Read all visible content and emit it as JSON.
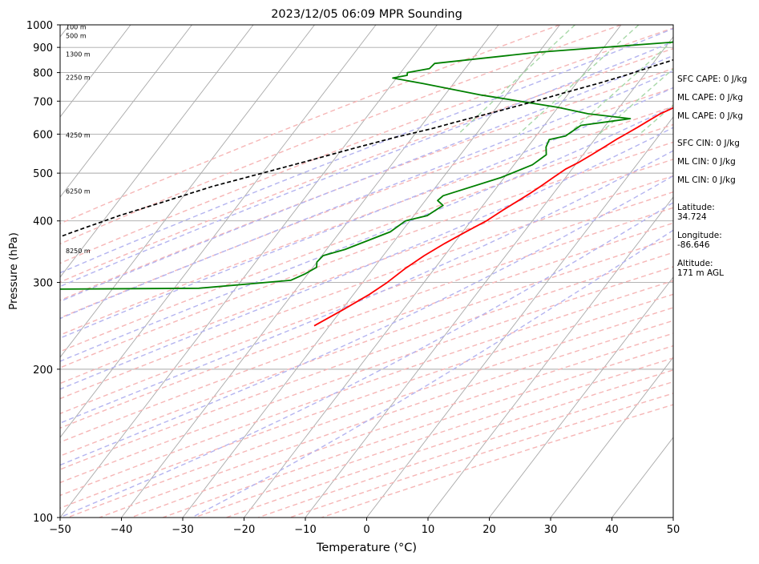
{
  "chart_data": {
    "type": "line",
    "subtype": "skew-T log-p sounding",
    "title": "2023/12/05 06:09 MPR Sounding",
    "xlabel": "Temperature (°C)",
    "ylabel": "Pressure (hPa)",
    "xlim": [
      -50,
      50
    ],
    "ylim": [
      1000,
      100
    ],
    "y_scale": "log",
    "x_ticks": [
      -50,
      -40,
      -30,
      -20,
      -10,
      0,
      10,
      20,
      30,
      40,
      50
    ],
    "y_ticks": [
      1000,
      900,
      800,
      700,
      600,
      500,
      400,
      300,
      200,
      100
    ],
    "grid": true,
    "series": [
      {
        "role": "temperature",
        "color": "#ff0000",
        "points": [
          [
            4.7,
            1000
          ],
          [
            7.0,
            985
          ],
          [
            6.5,
            960
          ],
          [
            5.8,
            940
          ],
          [
            6.3,
            915
          ],
          [
            6.6,
            890
          ],
          [
            6.9,
            865
          ],
          [
            7.0,
            845
          ],
          [
            7.5,
            820
          ],
          [
            6.5,
            800
          ],
          [
            5.9,
            785
          ],
          [
            5.2,
            765
          ],
          [
            3.8,
            740
          ],
          [
            2.5,
            720
          ],
          [
            0.5,
            700
          ],
          [
            -1.0,
            680
          ],
          [
            -2.5,
            660
          ],
          [
            -3.5,
            640
          ],
          [
            -4.5,
            620
          ],
          [
            -5.6,
            600
          ],
          [
            -6.5,
            585
          ],
          [
            -7.5,
            565
          ],
          [
            -8.6,
            545
          ],
          [
            -9.8,
            525
          ],
          [
            -11.0,
            510
          ],
          [
            -12.0,
            490
          ],
          [
            -13.0,
            470
          ],
          [
            -13.8,
            455
          ],
          [
            -14.8,
            440
          ],
          [
            -16.2,
            420
          ],
          [
            -17.5,
            400
          ],
          [
            -19.5,
            380
          ],
          [
            -21.5,
            360
          ],
          [
            -23.3,
            340
          ],
          [
            -24.8,
            320
          ],
          [
            -26.0,
            300
          ],
          [
            -27.5,
            283
          ],
          [
            -29.8,
            264
          ],
          [
            -32.5,
            245
          ]
        ]
      },
      {
        "role": "dewpoint",
        "color": "#008000",
        "points": [
          [
            1.3,
            1000
          ],
          [
            1.7,
            985
          ],
          [
            0.6,
            960
          ],
          [
            -5.6,
            930
          ],
          [
            -30.0,
            880
          ],
          [
            -45.6,
            835
          ],
          [
            -45.8,
            815
          ],
          [
            -48.9,
            800
          ],
          [
            -48.6,
            790
          ],
          [
            -50.6,
            780
          ],
          [
            -45.0,
            760
          ],
          [
            -34.0,
            720
          ],
          [
            -20.0,
            680
          ],
          [
            -14.3,
            660
          ],
          [
            -6.8,
            645
          ],
          [
            -14.0,
            625
          ],
          [
            -15.2,
            595
          ],
          [
            -17.4,
            585
          ],
          [
            -17.0,
            565
          ],
          [
            -16.0,
            545
          ],
          [
            -17.0,
            520
          ],
          [
            -20.5,
            490
          ],
          [
            -27.7,
            450
          ],
          [
            -28.0,
            440
          ],
          [
            -26.5,
            430
          ],
          [
            -27.8,
            410
          ],
          [
            -30.7,
            400
          ],
          [
            -31.8,
            380
          ],
          [
            -37.0,
            350
          ],
          [
            -39.8,
            340
          ],
          [
            -40.0,
            330
          ],
          [
            -39.4,
            322
          ],
          [
            -40.5,
            312
          ],
          [
            -42.0,
            303
          ],
          [
            -56.0,
            292
          ],
          [
            -93.5,
            290
          ]
        ]
      },
      {
        "role": "parcel",
        "color": "#000000",
        "style": "dashed",
        "points": [
          [
            4.7,
            1000
          ],
          [
            3.5,
            980
          ],
          [
            1.5,
            950
          ],
          [
            -0.5,
            925
          ],
          [
            -2.5,
            900
          ],
          [
            -4.5,
            875
          ],
          [
            -7.0,
            850
          ],
          [
            -10.0,
            820
          ],
          [
            -13.0,
            790
          ],
          [
            -16.5,
            760
          ],
          [
            -20.5,
            730
          ],
          [
            -24.5,
            700
          ],
          [
            -29.0,
            670
          ],
          [
            -34.0,
            640
          ],
          [
            -38.0,
            615
          ],
          [
            -43.0,
            590
          ],
          [
            -48.5,
            560
          ],
          [
            -54.0,
            530
          ],
          [
            -60.0,
            500
          ],
          [
            -66.5,
            470
          ],
          [
            -72.0,
            440
          ],
          [
            -78.0,
            410
          ],
          [
            -83.5,
            380
          ],
          [
            -89.0,
            350
          ],
          [
            -94.5,
            320
          ],
          [
            -100.0,
            290
          ],
          [
            -105.5,
            262
          ]
        ]
      }
    ],
    "height_labels": [
      {
        "text": "100 m",
        "p": 990
      },
      {
        "text": "500 m",
        "p": 950
      },
      {
        "text": "1300 m",
        "p": 872
      },
      {
        "text": "2250 m",
        "p": 782
      },
      {
        "text": "4250 m",
        "p": 598
      },
      {
        "text": "6250 m",
        "p": 460
      },
      {
        "text": "8250 m",
        "p": 348
      }
    ],
    "reference_lines": {
      "isotherm_color": "#a9a9a9",
      "dry_adiabat_color": "#f6b6b6",
      "moist_adiabat_color": "#b4b4f0",
      "mixing_ratio_color": "#a8d8a8"
    }
  },
  "stats": [
    {
      "lines": [
        "SFC CAPE: 0 J/kg"
      ]
    },
    {
      "lines": [
        "ML CAPE: 0 J/kg"
      ]
    },
    {
      "lines": [
        "ML CAPE: 0 J/kg"
      ]
    },
    {
      "lines": [
        "SFC CIN: 0 J/kg"
      ]
    },
    {
      "lines": [
        "ML CIN: 0 J/kg"
      ]
    },
    {
      "lines": [
        "ML CIN: 0 J/kg"
      ]
    },
    {
      "lines": [
        "Latitude:",
        "34.724"
      ]
    },
    {
      "lines": [
        "Longitude:",
        "-86.646"
      ]
    },
    {
      "lines": [
        "Altitude:",
        "171 m AGL"
      ]
    }
  ]
}
